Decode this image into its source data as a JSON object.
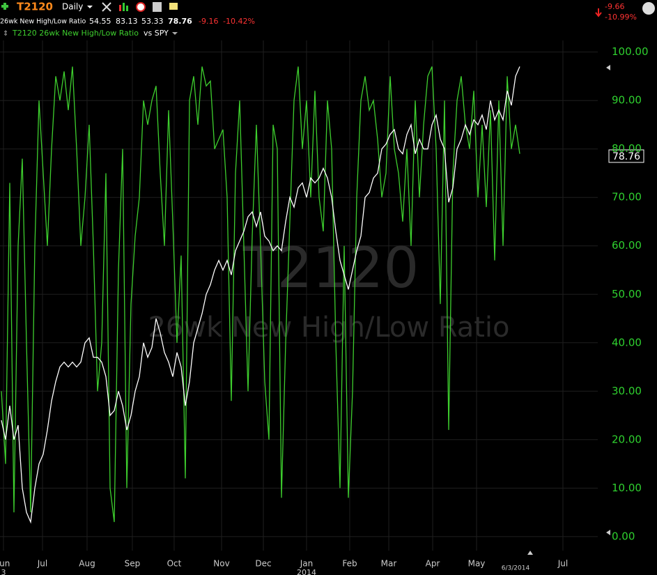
{
  "header": {
    "symbol": "T2120",
    "interval": "Daily",
    "name": "26wk New High/Low Ratio",
    "ohlc": [
      "54.55",
      "83.13",
      "53.33",
      "78.76"
    ],
    "change": "-9.16",
    "change_pct": "-10.42%",
    "right_change": "-9.66",
    "right_pct": "-10.99%"
  },
  "chart_data": {
    "type": "line",
    "title": "T2120",
    "subtitle": "26wk New High/Low Ratio",
    "annotations": [
      "6/3/2014",
      "2014",
      "3"
    ],
    "categories": [
      null,
      null,
      null,
      null,
      null,
      null,
      null,
      null,
      null,
      null,
      null,
      null,
      null,
      null,
      null,
      null,
      null,
      null,
      null,
      null,
      null,
      null,
      null,
      null,
      null,
      null,
      null,
      null,
      null,
      null,
      null,
      null,
      null,
      null,
      null,
      null,
      null,
      null,
      null,
      null,
      null,
      null,
      null,
      null,
      null,
      null,
      null,
      null,
      null,
      null,
      null,
      null,
      null,
      null,
      null,
      null,
      null,
      null,
      null,
      null,
      null,
      null,
      null,
      null,
      null,
      null,
      null,
      null,
      null,
      null,
      null,
      null,
      null,
      null,
      null,
      null,
      null,
      null,
      null,
      null,
      null,
      null,
      null,
      null,
      null,
      null,
      null,
      null,
      null,
      null,
      null,
      null,
      null,
      null,
      null,
      null,
      null,
      null,
      null,
      null,
      null,
      null,
      null,
      null,
      null,
      null,
      null,
      null,
      null,
      null,
      null,
      null,
      null,
      null,
      null,
      null,
      null,
      null,
      null,
      null,
      null,
      null,
      null,
      null,
      null
    ],
    "series": [
      {
        "name": "T2120 26wk New High/Low Ratio",
        "color": "#3ecf2e",
        "values": [
          30,
          15,
          73,
          5,
          60,
          78,
          40,
          5,
          60,
          90,
          75,
          60,
          80,
          95,
          90,
          96,
          88,
          97,
          80,
          60,
          70,
          85,
          60,
          30,
          40,
          75,
          10,
          3,
          55,
          80,
          10,
          48,
          62,
          70,
          90,
          85,
          90,
          93,
          75,
          60,
          88,
          65,
          40,
          58,
          12,
          90,
          95,
          85,
          97,
          93,
          94,
          80,
          82,
          84,
          70,
          28,
          75,
          90,
          60,
          30,
          62,
          85,
          60,
          32,
          20,
          85,
          80,
          8,
          40,
          65,
          90,
          97,
          80,
          90,
          70,
          92,
          70,
          63,
          90,
          80,
          40,
          10,
          60,
          8,
          30,
          70,
          90,
          95,
          88,
          90,
          82,
          70,
          75,
          95,
          80,
          75,
          65,
          80,
          60,
          90,
          70,
          85,
          95,
          97,
          80,
          48,
          90,
          22,
          75,
          90,
          95,
          85,
          80,
          92,
          70,
          85,
          68,
          88,
          57,
          90,
          60,
          95,
          80,
          85,
          79
        ]
      },
      {
        "name": "vs SPY",
        "color": "#ffffff",
        "values": [
          24,
          20,
          27,
          20,
          23,
          10,
          5,
          3,
          10,
          15,
          17,
          22,
          28,
          32,
          35,
          36,
          35,
          36,
          35,
          36,
          40,
          41,
          37,
          37,
          36,
          33,
          25,
          26,
          30,
          27,
          22,
          25,
          30,
          33,
          40,
          37,
          39,
          45,
          42,
          38,
          36,
          33,
          38,
          35,
          27,
          32,
          40,
          43,
          46,
          50,
          52,
          55,
          57,
          55,
          57,
          54,
          59,
          61,
          63,
          66,
          67,
          64,
          67,
          62,
          61,
          59,
          60,
          59,
          65,
          70,
          68,
          72,
          73,
          70,
          74,
          73,
          74,
          76,
          74,
          70,
          63,
          57,
          54,
          51,
          55,
          59,
          62,
          70,
          71,
          74,
          75,
          80,
          81,
          83,
          84,
          80,
          79,
          83,
          85,
          79,
          82,
          80,
          80,
          85,
          87,
          82,
          80,
          69,
          72,
          80,
          82,
          85,
          83,
          86,
          85,
          87,
          84,
          90,
          86,
          88,
          86,
          92,
          89,
          95,
          97
        ]
      }
    ],
    "xlim": [
      -0.33,
      142.67
    ],
    "xticks": [
      {
        "value": 0.5,
        "label": "Jun"
      },
      {
        "value": 9.83,
        "label": "Jul"
      },
      {
        "value": 20.5,
        "label": "Aug"
      },
      {
        "value": 31.33,
        "label": "Sep"
      },
      {
        "value": 41.33,
        "label": "Oct"
      },
      {
        "value": 52.67,
        "label": "Nov"
      },
      {
        "value": 62.67,
        "label": "Dec"
      },
      {
        "value": 73,
        "label": "Jan"
      },
      {
        "value": 83.33,
        "label": "Feb"
      },
      {
        "value": 92.67,
        "label": "Mar"
      },
      {
        "value": 103.17,
        "label": "Apr"
      },
      {
        "value": 113.67,
        "label": "May"
      },
      {
        "value": 134.33,
        "label": "Jul"
      }
    ],
    "ylim": [
      -2.9,
      102.4
    ],
    "yticks": [
      {
        "value": 0,
        "label": "0.00"
      },
      {
        "value": 10,
        "label": "10.00"
      },
      {
        "value": 20,
        "label": "20.00"
      },
      {
        "value": 30,
        "label": "30.00"
      },
      {
        "value": 40,
        "label": "40.00"
      },
      {
        "value": 50,
        "label": "50.00"
      },
      {
        "value": 60,
        "label": "60.00"
      },
      {
        "value": 70,
        "label": "70.00"
      },
      {
        "value": 80,
        "label": "80.00"
      },
      {
        "value": 90,
        "label": "90.00"
      },
      {
        "value": 100,
        "label": "100.00"
      }
    ],
    "grid": true
  }
}
